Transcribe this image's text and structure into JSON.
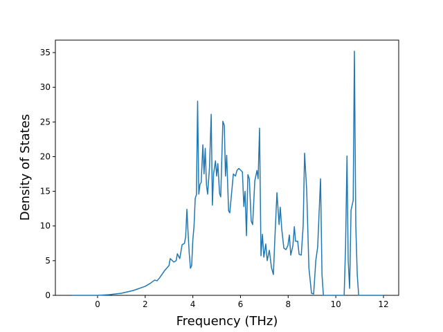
{
  "chart_data": {
    "type": "line",
    "x_label": "Frequency (THz)",
    "y_label": "Density of States",
    "xlim": [
      -1.77,
      12.64
    ],
    "ylim": [
      0,
      36.8
    ],
    "xticks": [
      0,
      2,
      4,
      6,
      8,
      10,
      12
    ],
    "yticks": [
      0,
      5,
      10,
      15,
      20,
      25,
      30,
      35
    ],
    "grid": false,
    "series": [
      {
        "color": "#1f77b4",
        "x": [
          -1.1,
          0,
          0.5,
          1,
          1.5,
          2,
          2.2,
          2.4,
          2.5,
          2.6,
          2.8,
          3.0,
          3.05,
          3.2,
          3.3,
          3.35,
          3.45,
          3.55,
          3.65,
          3.7,
          3.75,
          3.8,
          3.85,
          3.9,
          3.95,
          4.0,
          4.05,
          4.1,
          4.15,
          4.2,
          4.25,
          4.3,
          4.35,
          4.42,
          4.47,
          4.52,
          4.57,
          4.62,
          4.7,
          4.77,
          4.82,
          4.87,
          4.95,
          5.0,
          5.05,
          5.12,
          5.17,
          5.26,
          5.32,
          5.37,
          5.42,
          5.5,
          5.55,
          5.62,
          5.7,
          5.79,
          5.85,
          5.93,
          6.08,
          6.14,
          6.19,
          6.25,
          6.31,
          6.37,
          6.45,
          6.51,
          6.6,
          6.69,
          6.74,
          6.8,
          6.86,
          6.92,
          6.98,
          7.06,
          7.12,
          7.21,
          7.3,
          7.38,
          7.44,
          7.53,
          7.62,
          7.67,
          7.73,
          7.82,
          7.91,
          7.99,
          8.05,
          8.11,
          8.2,
          8.26,
          8.31,
          8.4,
          8.46,
          8.55,
          8.63,
          8.69,
          8.78,
          8.87,
          8.98,
          9.07,
          9.16,
          9.24,
          9.3,
          9.36,
          9.42,
          9.48,
          10.35,
          10.41,
          10.47,
          10.52,
          10.58,
          10.64,
          10.73,
          10.78,
          10.84,
          10.9,
          10.96,
          12.0
        ],
        "values": [
          0,
          0,
          0.1,
          0.3,
          0.7,
          1.3,
          1.7,
          2.2,
          2.1,
          2.5,
          3.5,
          4.3,
          5.3,
          4.8,
          5.0,
          6.0,
          5.3,
          7.3,
          7.5,
          8.5,
          12.4,
          9,
          6,
          3.9,
          4.3,
          8,
          10,
          14,
          14.5,
          28,
          14.6,
          16,
          16.3,
          21.7,
          17.5,
          21.2,
          16,
          14.6,
          18.5,
          26.1,
          13,
          17.5,
          19.4,
          17.2,
          19,
          14.7,
          14.2,
          25.1,
          24.5,
          17.2,
          20.2,
          12.2,
          11.9,
          14.5,
          17.5,
          17.2,
          18,
          18.3,
          17.8,
          12.8,
          15,
          8.6,
          17.4,
          16.8,
          10.7,
          10.2,
          16.5,
          18,
          16.8,
          24.1,
          5.7,
          8.8,
          5.5,
          7.4,
          5,
          6.5,
          4,
          3,
          8,
          14.8,
          10.2,
          12.7,
          9.6,
          6.8,
          6.6,
          7.2,
          8.7,
          5.8,
          7.2,
          9.9,
          7.8,
          7.8,
          5.9,
          5.8,
          10,
          20.5,
          15,
          4,
          0.3,
          0.2,
          5,
          7,
          12,
          16.8,
          3,
          0,
          0,
          7,
          20.1,
          5,
          1,
          12.3,
          13.7,
          35.2,
          10,
          3,
          0,
          0
        ]
      }
    ]
  }
}
